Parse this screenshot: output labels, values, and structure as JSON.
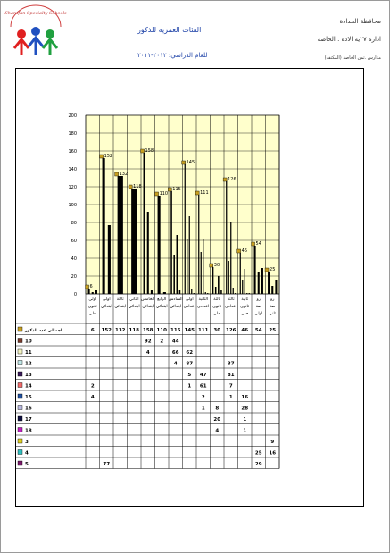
{
  "header": {
    "directorate": "محافظة الحدادة",
    "school_office": "ادارة ٢٧يه الادة . الخاصة",
    "school": "مدارس .ثمن الخاصة (المكتف)",
    "report_title": "الفئات العمرية للذكور",
    "year_label": "للعام الدراسي: ٢٠١٢-٢٠١١",
    "logo_text": "Sharafan Specialty Schools"
  },
  "chart_data": {
    "type": "bar",
    "ylim": [
      0,
      200
    ],
    "yticks": [
      0,
      20,
      40,
      60,
      80,
      100,
      120,
      140,
      160,
      180,
      200
    ],
    "grid": true,
    "categories": [
      "اولى ثانوي حلى",
      "اولى ابتدائي",
      "ثالثة ابتدائي",
      "الثاني ابتدائي",
      "الخامس ابتدائي",
      "الرابع ابتدائي",
      "السادس ابتدائي",
      "اولى اعدادي",
      "الثانية اعدادي",
      "ثالثة ثانوي حلى",
      "ثالثة اعدادي",
      "ثانية ثانوي حلى",
      "رو ضة اولى",
      "رو ضة ثاني"
    ],
    "totals": [
      6,
      152,
      132,
      118,
      158,
      110,
      115,
      145,
      111,
      30,
      126,
      46,
      54,
      25
    ],
    "legend": [
      "اجمالي عدد الذكور",
      "10",
      "11",
      "12",
      "13",
      "14",
      "15",
      "16",
      "17",
      "18",
      "3",
      "4",
      "5"
    ],
    "legend_colors": [
      "#c8a020",
      "#7a3a2a",
      "#f2f2c0",
      "#bfe6e6",
      "#3a1a5a",
      "#f06a6a",
      "#2050a0",
      "#b8b8e0",
      "#101040",
      "#c020c0",
      "#e0d020",
      "#30c0c0",
      "#7a1a6a"
    ],
    "rows": [
      [
        "6",
        "152",
        "132",
        "118",
        "158",
        "110",
        "115",
        "145",
        "111",
        "30",
        "126",
        "46",
        "54",
        "25"
      ],
      [
        "",
        "",
        "",
        "",
        "92",
        "2",
        "44",
        "",
        "",
        "",
        "",
        "",
        "",
        ""
      ],
      [
        "",
        "",
        "",
        "",
        "4",
        "",
        "66",
        "62",
        "",
        "",
        "",
        "",
        "",
        ""
      ],
      [
        "",
        "",
        "",
        "",
        "",
        "",
        "4",
        "87",
        "",
        "",
        "37",
        "",
        "",
        ""
      ],
      [
        "",
        "",
        "",
        "",
        "",
        "",
        "",
        "5",
        "47",
        "",
        "81",
        "",
        "",
        ""
      ],
      [
        "2",
        "",
        "",
        "",
        "",
        "",
        "",
        "1",
        "61",
        "",
        "7",
        "",
        "",
        ""
      ],
      [
        "4",
        "",
        "",
        "",
        "",
        "",
        "",
        "",
        "2",
        "",
        "1",
        "16",
        "",
        ""
      ],
      [
        "",
        "",
        "",
        "",
        "",
        "",
        "",
        "",
        "1",
        "8",
        "",
        "28",
        "",
        ""
      ],
      [
        "",
        "",
        "",
        "",
        "",
        "",
        "",
        "",
        "",
        "20",
        "",
        "1",
        "",
        ""
      ],
      [
        "",
        "",
        "",
        "",
        "",
        "",
        "",
        "",
        "",
        "4",
        "",
        "1",
        "",
        ""
      ],
      [
        "",
        "",
        "",
        "",
        "",
        "",
        "",
        "",
        "",
        "",
        "",
        "",
        "",
        "9"
      ],
      [
        "",
        "",
        "",
        "",
        "",
        "",
        "",
        "",
        "",
        "",
        "",
        "",
        "25",
        "16"
      ],
      [
        "",
        "77",
        "",
        "",
        "",
        "",
        "",
        "",
        "",
        "",
        "",
        "",
        "29",
        ""
      ]
    ],
    "bar_color": "#000000",
    "plot_bg": "#ffffcc",
    "gridline_color": "#000000"
  }
}
